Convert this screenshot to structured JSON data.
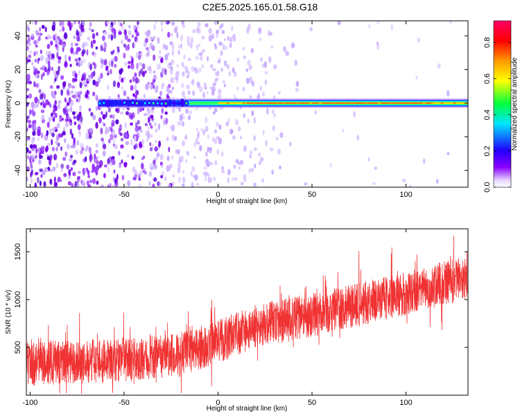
{
  "title": "C2E5.2025.165.01.58.G18",
  "chart_data": [
    {
      "type": "heatmap",
      "xlabel": "Height of straight line (km)",
      "ylabel": "Frequency (Hz)",
      "xlim": [
        -102,
        133
      ],
      "ylim": [
        -50,
        49
      ],
      "xticks": [
        -100,
        -50,
        0,
        50,
        100
      ],
      "yticks": [
        -40,
        -20,
        0,
        20,
        40
      ],
      "colorbar": {
        "label": "Normalized spectral amplitude",
        "range": [
          0,
          0.92
        ],
        "ticks": [
          0.0,
          0.2,
          0.4,
          0.6,
          0.8
        ],
        "tick_labels": [
          "0.0",
          "0.2",
          "0.4",
          "0.6",
          "0.8"
        ],
        "colors": [
          "#ffffff",
          "#8a00ff",
          "#2200ff",
          "#00e5ff",
          "#00ff40",
          "#ffff00",
          "#ff9900",
          "#ff0000",
          "#ff0066"
        ]
      },
      "ridge": {
        "description_frequency_hz": 0,
        "start_km": -63,
        "end_km": 133,
        "peak_amplitude": 0.85
      },
      "noise": {
        "dense_until_km": -25,
        "fades_out_km": 40
      }
    },
    {
      "type": "line",
      "xlabel": "Height of straight line (km)",
      "ylabel": "SNR (10 * v/v)",
      "xlim": [
        -102,
        133
      ],
      "ylim": [
        0,
        1740
      ],
      "xticks": [
        -100,
        -50,
        0,
        50,
        100
      ],
      "yticks": [
        500,
        1000,
        1500
      ],
      "color": "#f03232",
      "trend": {
        "x": [
          -102,
          -60,
          -20,
          0,
          20,
          60,
          100,
          133
        ],
        "y": [
          330,
          360,
          420,
          560,
          720,
          880,
          1060,
          1240
        ]
      },
      "spread": 230
    }
  ]
}
